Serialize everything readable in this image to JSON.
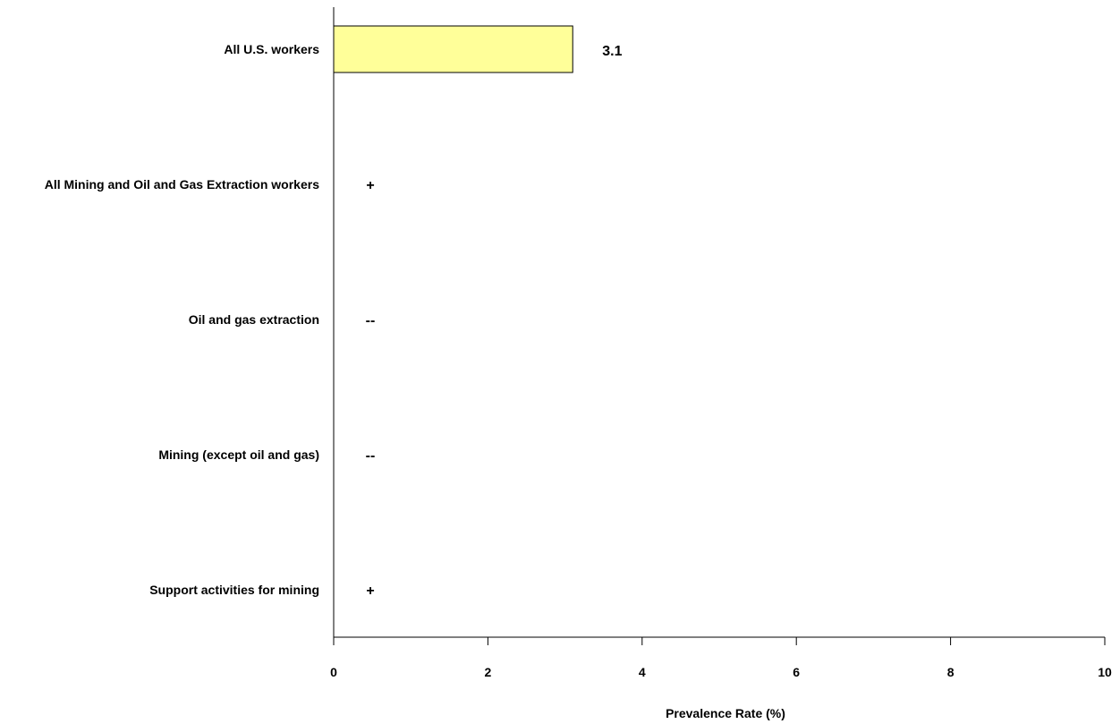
{
  "chart_data": {
    "type": "bar",
    "orientation": "horizontal",
    "categories": [
      "All U.S. workers",
      "All Mining and Oil and Gas Extraction workers",
      "Oil and gas extraction",
      "Mining (except oil and gas)",
      "Support activities for mining"
    ],
    "values": [
      3.1,
      null,
      null,
      null,
      null
    ],
    "value_labels": [
      "3.1",
      "+",
      "--",
      "--",
      "+"
    ],
    "xlabel": "Prevalence Rate (%)",
    "ylabel": "",
    "xlim": [
      0,
      10
    ],
    "xticks": [
      0,
      2,
      4,
      6,
      8,
      10
    ],
    "grid": false,
    "legend": "none",
    "bar_color": "#ffff99",
    "bar_edge_color": "#000000"
  }
}
